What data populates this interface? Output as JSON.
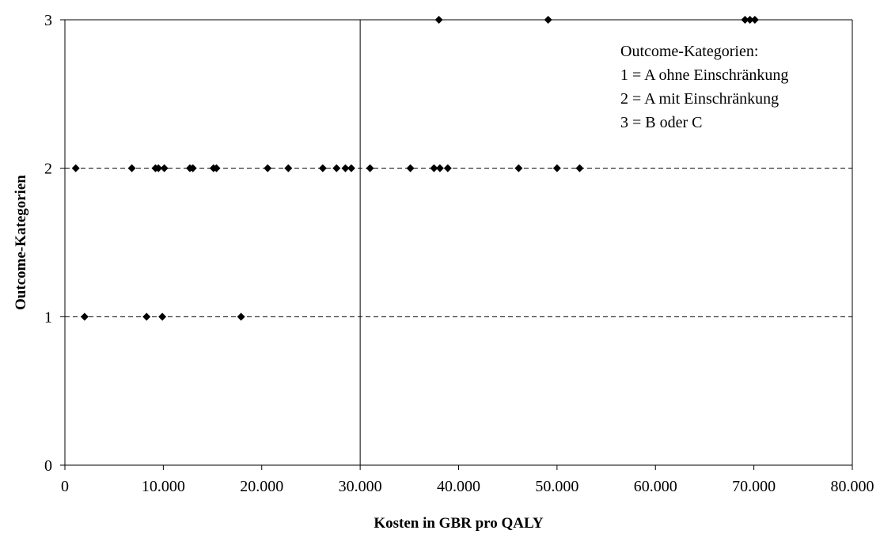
{
  "chart_data": {
    "type": "scatter",
    "title": "",
    "xlabel": "Kosten in GBR pro QALY",
    "ylabel": "Outcome-Kategorien",
    "xlim": [
      0,
      80000
    ],
    "ylim": [
      0,
      3
    ],
    "x_ticks": [
      0,
      10000,
      20000,
      30000,
      40000,
      50000,
      60000,
      70000,
      80000
    ],
    "x_tick_labels": [
      "0",
      "10.000",
      "20.000",
      "30.000",
      "40.000",
      "50.000",
      "60.000",
      "70.000",
      "80.000"
    ],
    "y_ticks": [
      0,
      1,
      2,
      3
    ],
    "y_tick_labels": [
      "0",
      "1",
      "2",
      "3"
    ],
    "grid": "horizontal dashed at y=1 and y=2",
    "reference_line_x": 30000,
    "marker": "diamond",
    "marker_color": "#000000",
    "legend": {
      "placement": "top-right",
      "lines": [
        "Outcome-Kategorien:",
        "1 = A ohne Einschränkung",
        "2 = A mit Einschränkung",
        "3 = B oder C"
      ]
    },
    "series": [
      {
        "points": [
          {
            "x": 2000,
            "y": 1
          },
          {
            "x": 8300,
            "y": 1
          },
          {
            "x": 9900,
            "y": 1
          },
          {
            "x": 17900,
            "y": 1
          },
          {
            "x": 1100,
            "y": 2
          },
          {
            "x": 6800,
            "y": 2
          },
          {
            "x": 9200,
            "y": 2
          },
          {
            "x": 9500,
            "y": 2
          },
          {
            "x": 10100,
            "y": 2
          },
          {
            "x": 12700,
            "y": 2
          },
          {
            "x": 13000,
            "y": 2
          },
          {
            "x": 15100,
            "y": 2
          },
          {
            "x": 15400,
            "y": 2
          },
          {
            "x": 20600,
            "y": 2
          },
          {
            "x": 22700,
            "y": 2
          },
          {
            "x": 26200,
            "y": 2
          },
          {
            "x": 27600,
            "y": 2
          },
          {
            "x": 28500,
            "y": 2
          },
          {
            "x": 29100,
            "y": 2
          },
          {
            "x": 31000,
            "y": 2
          },
          {
            "x": 35100,
            "y": 2
          },
          {
            "x": 37500,
            "y": 2
          },
          {
            "x": 38100,
            "y": 2
          },
          {
            "x": 38900,
            "y": 2
          },
          {
            "x": 46100,
            "y": 2
          },
          {
            "x": 50000,
            "y": 2
          },
          {
            "x": 52300,
            "y": 2
          },
          {
            "x": 38000,
            "y": 3
          },
          {
            "x": 49100,
            "y": 3
          },
          {
            "x": 69100,
            "y": 3
          },
          {
            "x": 69600,
            "y": 3
          },
          {
            "x": 70100,
            "y": 3
          }
        ]
      }
    ]
  }
}
